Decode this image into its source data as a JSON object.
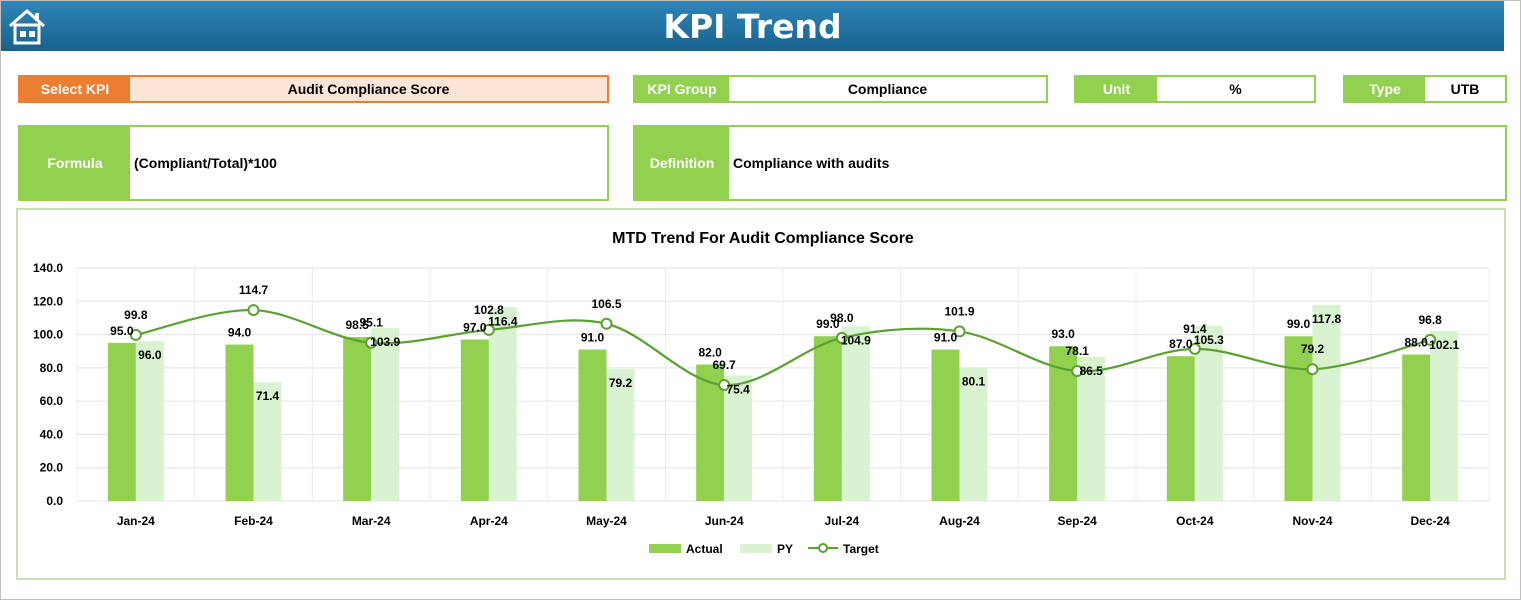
{
  "header": {
    "title": "KPI Trend"
  },
  "fields": {
    "select_kpi_label": "Select KPI",
    "select_kpi_value": "Audit Compliance Score",
    "kpi_group_label": "KPI Group",
    "kpi_group_value": "Compliance",
    "unit_label": "Unit",
    "unit_value": "%",
    "type_label": "Type",
    "type_value": "UTB",
    "formula_label": "Formula",
    "formula_value": "(Compliant/Total)*100",
    "definition_label": "Definition",
    "definition_value": "Compliance with audits"
  },
  "colors": {
    "header": "#1f6e9e",
    "accent_green": "#92d050",
    "actual_bar": "#92d050",
    "py_bar": "#d9f2d0",
    "target_line": "#5aa132",
    "select_orange": "#ed7d31"
  },
  "chart_data": {
    "type": "bar",
    "title": "MTD Trend For Audit Compliance Score",
    "categories": [
      "Jan-24",
      "Feb-24",
      "Mar-24",
      "Apr-24",
      "May-24",
      "Jun-24",
      "Jul-24",
      "Aug-24",
      "Sep-24",
      "Oct-24",
      "Nov-24",
      "Dec-24"
    ],
    "series": [
      {
        "name": "Actual",
        "type": "bar",
        "values": [
          95.0,
          94.0,
          98.5,
          97.0,
          91.0,
          82.0,
          99.0,
          91.0,
          93.0,
          87.0,
          99.0,
          88.0
        ]
      },
      {
        "name": "PY",
        "type": "bar",
        "values": [
          96.0,
          71.4,
          103.9,
          116.4,
          79.2,
          75.4,
          104.9,
          80.1,
          86.5,
          105.3,
          117.8,
          102.1
        ]
      },
      {
        "name": "Target",
        "type": "line",
        "values": [
          99.8,
          114.7,
          95.1,
          102.8,
          106.5,
          69.7,
          98.0,
          101.9,
          78.1,
          91.4,
          79.2,
          96.8
        ]
      }
    ],
    "ylim": [
      0,
      140
    ],
    "yticks": [
      "0.0",
      "20.0",
      "40.0",
      "60.0",
      "80.0",
      "100.0",
      "120.0",
      "140.0"
    ],
    "grid": true,
    "legend_position": "bottom"
  }
}
